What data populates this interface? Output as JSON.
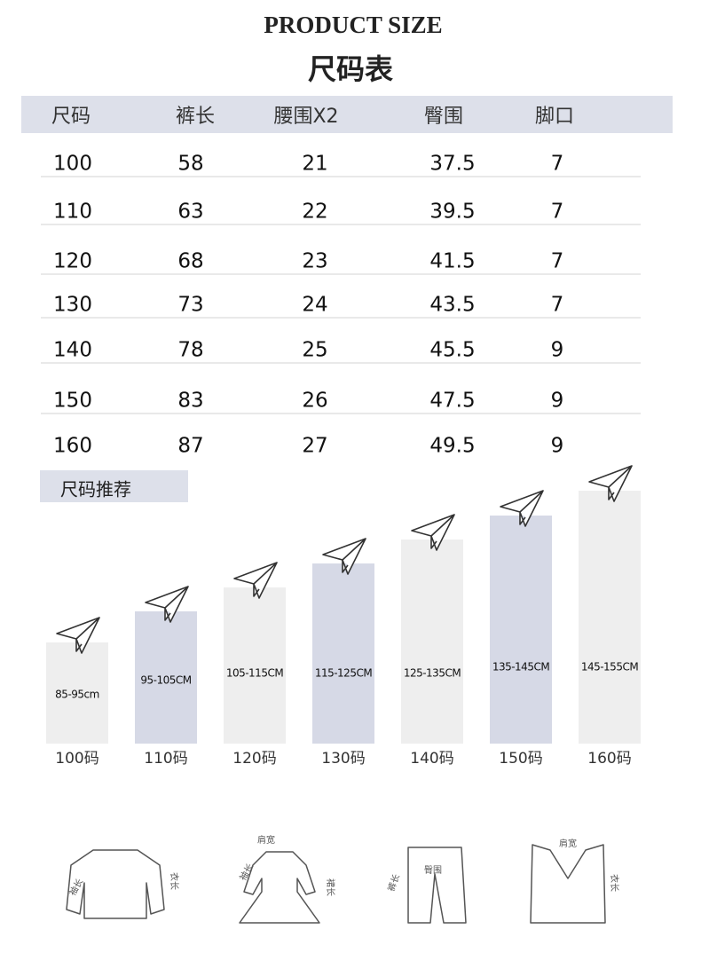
{
  "header": {
    "title": "PRODUCT SIZE",
    "subtitle": "尺码表"
  },
  "table": {
    "columns": [
      "尺码",
      "裤长",
      "腰围X2",
      "臀围",
      "脚口"
    ],
    "rows": [
      [
        "100",
        "58",
        "21",
        "37.5",
        "7"
      ],
      [
        "110",
        "63",
        "22",
        "39.5",
        "7"
      ],
      [
        "120",
        "68",
        "23",
        "41.5",
        "7"
      ],
      [
        "130",
        "73",
        "24",
        "43.5",
        "7"
      ],
      [
        "140",
        "78",
        "25",
        "45.5",
        "9"
      ],
      [
        "150",
        "83",
        "26",
        "47.5",
        "9"
      ],
      [
        "160",
        "87",
        "27",
        "49.5",
        "9"
      ]
    ]
  },
  "recommend": {
    "label": "尺码推荐",
    "items": [
      {
        "range": "85-95cm",
        "size": "100码"
      },
      {
        "range": "95-105CM",
        "size": "110码"
      },
      {
        "range": "105-115CM",
        "size": "120码"
      },
      {
        "range": "115-125CM",
        "size": "130码"
      },
      {
        "range": "125-135CM",
        "size": "140码"
      },
      {
        "range": "135-145CM",
        "size": "150码"
      },
      {
        "range": "145-155CM",
        "size": "160码"
      }
    ]
  },
  "garments": [
    {
      "labels": [
        "袖长",
        "衣长"
      ]
    },
    {
      "labels": [
        "肩宽",
        "袖长",
        "裙长"
      ]
    },
    {
      "labels": [
        "臀围",
        "裤长"
      ]
    },
    {
      "labels": [
        "肩宽",
        "衣长"
      ]
    }
  ]
}
